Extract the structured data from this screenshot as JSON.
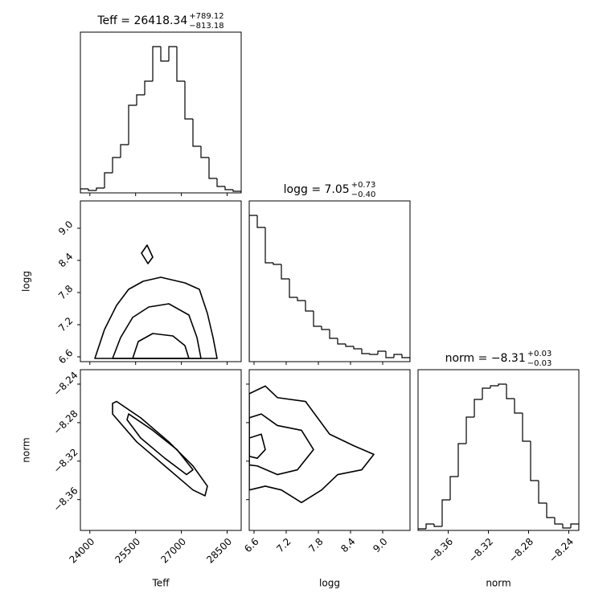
{
  "chart_data": [
    {
      "type": "histogram",
      "title": "Teff = 26418.34",
      "title_plus": "+789.12",
      "title_minus": "−813.18",
      "bins": [
        23690,
        23953.5,
        24217,
        24480.5,
        24744,
        25007.5,
        25271,
        25534.5,
        25798,
        26061.5,
        26325,
        26588.5,
        26852,
        27115.5,
        27379,
        27642.5,
        27906,
        28169.5,
        28433,
        28696.5,
        28960
      ],
      "values": [
        5,
        3,
        6,
        25,
        44,
        60,
        109,
        122,
        139,
        182,
        164,
        182,
        139,
        92,
        58,
        44,
        18,
        8,
        4,
        2
      ],
      "xlim": [
        23690,
        28960
      ],
      "xticks": [
        24000,
        25500,
        27000,
        28500
      ],
      "ylim": [
        0,
        200
      ],
      "color": "#000000",
      "xtick_labels": false
    },
    {
      "type": "contour",
      "xlabel": "Teff",
      "ylabel": "logg",
      "xlim": [
        23690,
        28960
      ],
      "xticks": [
        24000,
        25500,
        27000,
        28500
      ],
      "ylim": [
        6.51,
        9.51
      ],
      "yticks": [
        6.6,
        7.2,
        7.8,
        8.4,
        {
          "value": 9,
          "label": "9.0"
        }
      ],
      "color": "#000000",
      "xtick_labels": false,
      "ytick_labels": true,
      "contours": [
        {
          "x": [
            24164,
            24480,
            24876,
            25271,
            25745,
            26325,
            27116,
            27590,
            27853,
            28038,
            28170
          ],
          "y": [
            6.57,
            7.11,
            7.56,
            7.86,
            8.01,
            8.085,
            7.98,
            7.86,
            7.41,
            6.96,
            6.57
          ]
        },
        {
          "x": [
            24744,
            25008,
            25403,
            25930,
            26589,
            27247,
            27511,
            27643
          ],
          "y": [
            6.57,
            6.96,
            7.335,
            7.53,
            7.59,
            7.38,
            6.96,
            6.57
          ]
        },
        {
          "x": [
            25403,
            25587,
            26062,
            26720,
            27116,
            27247
          ],
          "y": [
            6.57,
            6.885,
            7.035,
            6.99,
            6.81,
            6.57
          ]
        },
        {
          "x": [
            25693,
            25877,
            26062,
            25903
          ],
          "y": [
            8.535,
            8.685,
            8.46,
            8.34
          ]
        }
      ]
    },
    {
      "type": "histogram",
      "title": "logg = 7.05",
      "title_plus": "+0.73",
      "title_minus": "−0.40",
      "bins": [
        6.51,
        6.66,
        6.81,
        6.96,
        7.11,
        7.26,
        7.41,
        7.56,
        7.71,
        7.86,
        8.01,
        8.16,
        8.31,
        8.46,
        8.61,
        8.76,
        8.91,
        9.06,
        9.21,
        9.36,
        9.51
      ],
      "values": [
        182,
        167,
        123,
        121,
        103,
        80,
        76,
        63,
        44,
        40,
        29,
        22,
        19,
        16,
        10,
        9,
        13,
        5,
        9,
        5
      ],
      "xlim": [
        6.51,
        9.51
      ],
      "xticks": [
        6.6,
        7.2,
        7.8,
        8.4,
        {
          "value": 9,
          "label": "9.0"
        }
      ],
      "ylim": [
        0,
        200
      ],
      "color": "#000000",
      "xtick_labels": false
    },
    {
      "type": "contour",
      "xlabel": "Teff",
      "ylabel": "norm",
      "xlim": [
        23690,
        28960
      ],
      "xticks": [
        24000,
        25500,
        27000,
        28500
      ],
      "ylim": [
        -8.392,
        -8.225
      ],
      "yticks": [
        {
          "value": -8.36,
          "label": "−8.36"
        },
        {
          "value": -8.32,
          "label": "−8.32"
        },
        {
          "value": -8.28,
          "label": "−8.28"
        },
        {
          "value": -8.24,
          "label": "−8.24"
        }
      ],
      "color": "#000000",
      "xtick_labels": true,
      "ytick_labels": true,
      "contours": [
        {
          "x": [
            24744,
            24876,
            25666,
            26589,
            27380,
            27853,
            27774,
            27380,
            26457,
            25535,
            24744
          ],
          "y": [
            -8.26,
            -8.258,
            -8.275,
            -8.3,
            -8.325,
            -8.346,
            -8.356,
            -8.35,
            -8.325,
            -8.3,
            -8.271
          ]
        },
        {
          "x": [
            25271,
            26062,
            26853,
            27380,
            27169,
            26457,
            25666,
            25219
          ],
          "y": [
            -8.271,
            -8.288,
            -8.308,
            -8.329,
            -8.334,
            -8.317,
            -8.296,
            -8.277
          ]
        }
      ]
    },
    {
      "type": "contour",
      "xlabel": "logg",
      "xlim": [
        6.51,
        9.51
      ],
      "xticks": [
        6.6,
        7.2,
        7.8,
        8.4,
        {
          "value": 9,
          "label": "9.0"
        }
      ],
      "ylim": [
        -8.392,
        -8.225
      ],
      "yticks": [
        -8.36,
        -8.32,
        -8.28,
        -8.24
      ],
      "color": "#000000",
      "xtick_labels": true,
      "ytick_labels": false,
      "contours": [
        {
          "x": [
            6.51,
            6.81,
            7.035,
            7.56,
            8.01,
            8.46,
            8.835,
            8.61,
            8.16,
            7.86,
            7.485,
            7.11,
            6.81,
            6.51
          ],
          "y": [
            -8.25,
            -8.242,
            -8.254,
            -8.258,
            -8.292,
            -8.304,
            -8.313,
            -8.329,
            -8.334,
            -8.35,
            -8.363,
            -8.35,
            -8.346,
            -8.35
          ]
        },
        {
          "x": [
            6.51,
            6.735,
            7.035,
            7.485,
            7.71,
            7.41,
            7.035,
            6.66,
            6.51
          ],
          "y": [
            -8.275,
            -8.271,
            -8.283,
            -8.288,
            -8.308,
            -8.329,
            -8.334,
            -8.325,
            -8.324
          ]
        },
        {
          "x": [
            6.51,
            6.735,
            6.81,
            6.66,
            6.51
          ],
          "y": [
            -8.296,
            -8.292,
            -8.308,
            -8.317,
            -8.315
          ]
        }
      ]
    },
    {
      "type": "histogram",
      "title": "norm = −8.31",
      "title_plus": "+0.03",
      "title_minus": "−0.03",
      "xlabel": "norm",
      "bins": [
        -8.39,
        -8.382,
        -8.374,
        -8.366,
        -8.358,
        -8.35,
        -8.342,
        -8.334,
        -8.326,
        -8.318,
        -8.31,
        -8.302,
        -8.294,
        -8.286,
        -8.278,
        -8.27,
        -8.262,
        -8.254,
        -8.246,
        -8.238,
        -8.23
      ],
      "values": [
        2,
        8,
        5,
        38,
        67,
        108,
        141,
        163,
        177,
        180,
        182,
        164,
        146,
        111,
        62,
        34,
        16,
        8,
        3,
        8
      ],
      "xlim": [
        -8.39,
        -8.23
      ],
      "xticks": [
        {
          "value": -8.36,
          "label": "−8.36"
        },
        {
          "value": -8.32,
          "label": "−8.32"
        },
        {
          "value": -8.28,
          "label": "−8.28"
        },
        {
          "value": -8.24,
          "label": "−8.24"
        }
      ],
      "ylim": [
        0,
        200
      ],
      "color": "#000000",
      "xtick_labels": true
    }
  ]
}
